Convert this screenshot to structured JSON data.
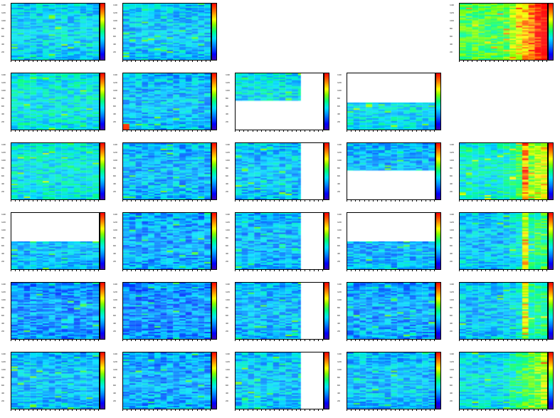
{
  "canvas": {
    "rows": 6,
    "cols": 5
  },
  "chart_data": {
    "type": "heatmap",
    "title": "",
    "xlabel": "",
    "ylabel": "",
    "colormap": [
      "#3a00b0",
      "#0000ff",
      "#0080ff",
      "#00e0ff",
      "#00ff80",
      "#80ff00",
      "#ffff00",
      "#ff8000",
      "#ff0000"
    ],
    "y_ticks": [
      "140",
      "120",
      "100",
      "80",
      "60",
      "40",
      "20"
    ],
    "panels": [
      {
        "id": "r1c1",
        "row": 0,
        "col": 0,
        "present": true,
        "mean_level": 0.36,
        "right_gradient": 0.0,
        "hot_spot": null,
        "filled_x": [
          0,
          1
        ],
        "filled_y": [
          0,
          1
        ]
      },
      {
        "id": "r1c2",
        "row": 0,
        "col": 1,
        "present": true,
        "mean_level": 0.34,
        "right_gradient": 0.0,
        "hot_spot": null,
        "filled_x": [
          0,
          1
        ],
        "filled_y": [
          0,
          1
        ]
      },
      {
        "id": "r1c3",
        "row": 0,
        "col": 2,
        "present": false
      },
      {
        "id": "r1c4",
        "row": 0,
        "col": 3,
        "present": false
      },
      {
        "id": "r1c5",
        "row": 0,
        "col": 4,
        "present": true,
        "mean_level": 0.55,
        "right_gradient": 0.5,
        "hot_spot": null,
        "filled_x": [
          0,
          1
        ],
        "filled_y": [
          0,
          1
        ]
      },
      {
        "id": "r2c1",
        "row": 1,
        "col": 0,
        "present": true,
        "mean_level": 0.4,
        "right_gradient": 0.0,
        "hot_spot": null,
        "filled_x": [
          0,
          1
        ],
        "filled_y": [
          0,
          1
        ]
      },
      {
        "id": "r2c2",
        "row": 1,
        "col": 1,
        "present": true,
        "mean_level": 0.33,
        "right_gradient": 0.0,
        "hot_spot": "bottom-left",
        "filled_x": [
          0,
          1
        ],
        "filled_y": [
          0,
          1
        ]
      },
      {
        "id": "r2c3",
        "row": 1,
        "col": 2,
        "present": true,
        "mean_level": 0.38,
        "right_gradient": 0.0,
        "hot_spot": null,
        "filled_x": [
          0,
          0.74
        ],
        "filled_y": [
          0,
          0.48
        ]
      },
      {
        "id": "r2c4",
        "row": 1,
        "col": 3,
        "present": true,
        "mean_level": 0.38,
        "right_gradient": 0.0,
        "hot_spot": null,
        "filled_x": [
          0,
          1
        ],
        "filled_y": [
          0.52,
          1
        ]
      },
      {
        "id": "r2c5",
        "row": 1,
        "col": 4,
        "present": false
      },
      {
        "id": "r3c1",
        "row": 2,
        "col": 0,
        "present": true,
        "mean_level": 0.4,
        "right_gradient": 0.0,
        "hot_spot": null,
        "filled_x": [
          0,
          1
        ],
        "filled_y": [
          0,
          1
        ]
      },
      {
        "id": "r3c2",
        "row": 2,
        "col": 1,
        "present": true,
        "mean_level": 0.32,
        "right_gradient": 0.0,
        "hot_spot": null,
        "filled_x": [
          0,
          1
        ],
        "filled_y": [
          0,
          1
        ]
      },
      {
        "id": "r3c3",
        "row": 2,
        "col": 2,
        "present": true,
        "mean_level": 0.34,
        "right_gradient": 0.0,
        "hot_spot": null,
        "filled_x": [
          0,
          0.74
        ],
        "filled_y": [
          0,
          1
        ]
      },
      {
        "id": "r3c4",
        "row": 2,
        "col": 3,
        "present": true,
        "mean_level": 0.32,
        "right_gradient": 0.0,
        "hot_spot": null,
        "filled_x": [
          0,
          1
        ],
        "filled_y": [
          0,
          0.48
        ]
      },
      {
        "id": "r3c5",
        "row": 2,
        "col": 4,
        "present": true,
        "mean_level": 0.42,
        "right_gradient": 0.3,
        "hot_spot": "right-band",
        "filled_x": [
          0,
          1
        ],
        "filled_y": [
          0,
          1
        ]
      },
      {
        "id": "r4c1",
        "row": 3,
        "col": 0,
        "present": true,
        "mean_level": 0.33,
        "right_gradient": 0.0,
        "hot_spot": null,
        "filled_x": [
          0,
          1
        ],
        "filled_y": [
          0.5,
          1
        ]
      },
      {
        "id": "r4c2",
        "row": 3,
        "col": 1,
        "present": true,
        "mean_level": 0.3,
        "right_gradient": 0.0,
        "hot_spot": null,
        "filled_x": [
          0,
          1
        ],
        "filled_y": [
          0,
          1
        ]
      },
      {
        "id": "r4c3",
        "row": 3,
        "col": 2,
        "present": true,
        "mean_level": 0.32,
        "right_gradient": 0.0,
        "hot_spot": null,
        "filled_x": [
          0,
          0.74
        ],
        "filled_y": [
          0,
          1
        ]
      },
      {
        "id": "r4c4",
        "row": 3,
        "col": 3,
        "present": true,
        "mean_level": 0.32,
        "right_gradient": 0.0,
        "hot_spot": null,
        "filled_x": [
          0,
          1
        ],
        "filled_y": [
          0.5,
          1
        ]
      },
      {
        "id": "r4c5",
        "row": 3,
        "col": 4,
        "present": true,
        "mean_level": 0.34,
        "right_gradient": 0.18,
        "hot_spot": "right-band",
        "filled_x": [
          0,
          1
        ],
        "filled_y": [
          0,
          1
        ]
      },
      {
        "id": "r5c1",
        "row": 4,
        "col": 0,
        "present": true,
        "mean_level": 0.28,
        "right_gradient": 0.0,
        "hot_spot": null,
        "filled_x": [
          0,
          1
        ],
        "filled_y": [
          0,
          1
        ]
      },
      {
        "id": "r5c2",
        "row": 4,
        "col": 1,
        "present": true,
        "mean_level": 0.27,
        "right_gradient": 0.0,
        "hot_spot": null,
        "filled_x": [
          0,
          1
        ],
        "filled_y": [
          0,
          1
        ]
      },
      {
        "id": "r5c3",
        "row": 4,
        "col": 2,
        "present": true,
        "mean_level": 0.32,
        "right_gradient": 0.0,
        "hot_spot": null,
        "filled_x": [
          0,
          0.74
        ],
        "filled_y": [
          0,
          1
        ]
      },
      {
        "id": "r5c4",
        "row": 4,
        "col": 3,
        "present": true,
        "mean_level": 0.3,
        "right_gradient": 0.0,
        "hot_spot": null,
        "filled_x": [
          0,
          1
        ],
        "filled_y": [
          0,
          1
        ]
      },
      {
        "id": "r5c5",
        "row": 4,
        "col": 4,
        "present": true,
        "mean_level": 0.34,
        "right_gradient": 0.16,
        "hot_spot": "right-band",
        "filled_x": [
          0,
          1
        ],
        "filled_y": [
          0,
          1
        ]
      },
      {
        "id": "r6c1",
        "row": 5,
        "col": 0,
        "present": true,
        "mean_level": 0.33,
        "right_gradient": 0.0,
        "hot_spot": null,
        "filled_x": [
          0,
          1
        ],
        "filled_y": [
          0,
          1
        ]
      },
      {
        "id": "r6c2",
        "row": 5,
        "col": 1,
        "present": true,
        "mean_level": 0.3,
        "right_gradient": 0.0,
        "hot_spot": null,
        "filled_x": [
          0,
          1
        ],
        "filled_y": [
          0,
          1
        ]
      },
      {
        "id": "r6c3",
        "row": 5,
        "col": 2,
        "present": true,
        "mean_level": 0.34,
        "right_gradient": 0.0,
        "hot_spot": null,
        "filled_x": [
          0,
          0.74
        ],
        "filled_y": [
          0,
          1
        ]
      },
      {
        "id": "r6c4",
        "row": 5,
        "col": 3,
        "present": true,
        "mean_level": 0.33,
        "right_gradient": 0.0,
        "hot_spot": null,
        "filled_x": [
          0,
          1
        ],
        "filled_y": [
          0,
          1
        ]
      },
      {
        "id": "r6c5",
        "row": 5,
        "col": 4,
        "present": true,
        "mean_level": 0.38,
        "right_gradient": 0.28,
        "hot_spot": null,
        "filled_x": [
          0,
          1
        ],
        "filled_y": [
          0,
          1
        ]
      }
    ]
  }
}
